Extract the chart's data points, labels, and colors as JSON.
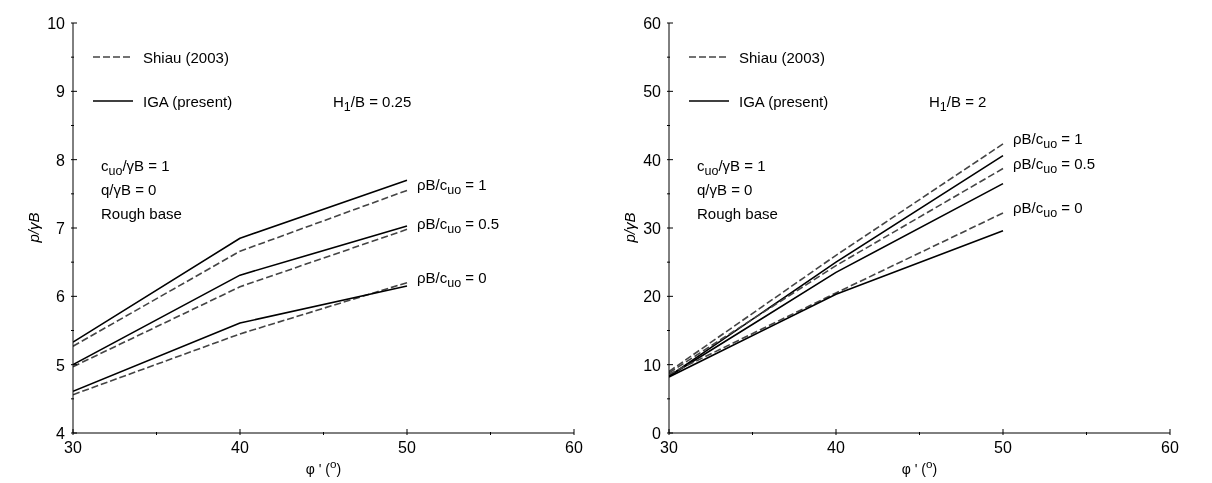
{
  "chart_data": [
    {
      "type": "line",
      "xlabel": "φ ' ($^{o}$)",
      "ylabel": "p/γB",
      "x": [
        30,
        40,
        50
      ],
      "xlim": [
        30,
        60
      ],
      "xticks": [
        30,
        {
          "value": 35,
          "label": null
        },
        40,
        {
          "value": 45,
          "label": null
        },
        50,
        {
          "value": 55,
          "label": null
        },
        60
      ],
      "ylim": [
        4,
        10
      ],
      "yticks": [
        4,
        {
          "value": 4.5,
          "label": null
        },
        5,
        {
          "value": 5.5,
          "label": null
        },
        6,
        {
          "value": 6.5,
          "label": null
        },
        7,
        {
          "value": 7.5,
          "label": null
        },
        8,
        {
          "value": 8.5,
          "label": null
        },
        9,
        {
          "value": 9.5,
          "label": null
        },
        10
      ],
      "legend": "top left",
      "grid": false,
      "marker": "none",
      "series": [
        {
          "name": "Shiau (2003)",
          "color": "#444444",
          "line_style": "dashed",
          "values": [
            5.27,
            6.66,
            7.55
          ]
        },
        {
          "name": "IGA (present)",
          "color": "#000000",
          "line_style": "solid",
          "values": [
            5.33,
            6.85,
            7.7
          ]
        },
        {
          "color": "#444444",
          "line_style": "dashed",
          "values": [
            4.97,
            6.14,
            6.98
          ]
        },
        {
          "color": "#000000",
          "line_style": "solid",
          "values": [
            5.0,
            6.31,
            7.03
          ]
        },
        {
          "color": "#444444",
          "line_style": "dashed",
          "values": [
            4.56,
            5.45,
            6.2
          ]
        },
        {
          "color": "#000000",
          "line_style": "solid",
          "values": [
            4.61,
            5.61,
            6.15
          ]
        }
      ],
      "annotations": [
        "H$_{1}$/B = 0.25",
        "c$_{uo}$/γB = 1",
        "q/γB = 0",
        "Rough base",
        "ρB/c$_{uo}$ = 1",
        "ρB/c$_{uo}$ = 0.5",
        "ρB/c$_{uo}$ = 0"
      ]
    },
    {
      "type": "line",
      "xlabel": "φ ' ($^{o}$)",
      "ylabel": "p/γB",
      "x": [
        30,
        40,
        50
      ],
      "xlim": [
        30,
        60
      ],
      "xticks": [
        30,
        {
          "value": 35,
          "label": null
        },
        40,
        {
          "value": 45,
          "label": null
        },
        50,
        {
          "value": 55,
          "label": null
        },
        60
      ],
      "ylim": [
        0,
        60
      ],
      "yticks": [
        0,
        {
          "value": 5,
          "label": null
        },
        10,
        {
          "value": 15,
          "label": null
        },
        20,
        {
          "value": 25,
          "label": null
        },
        30,
        {
          "value": 35,
          "label": null
        },
        40,
        {
          "value": 45,
          "label": null
        },
        50,
        {
          "value": 55,
          "label": null
        },
        60
      ],
      "legend": "top left",
      "grid": false,
      "marker": "none",
      "series": [
        {
          "name": "Shiau (2003)",
          "color": "#444444",
          "line_style": "dashed",
          "values": [
            9,
            26,
            42.3
          ]
        },
        {
          "name": "IGA (present)",
          "color": "#000000",
          "line_style": "solid",
          "values": [
            8.3,
            25,
            40.6
          ]
        },
        {
          "color": "#444444",
          "line_style": "dashed",
          "values": [
            8.8,
            24.5,
            38.7
          ]
        },
        {
          "color": "#000000",
          "line_style": "solid",
          "values": [
            8.3,
            23.5,
            36.5
          ]
        },
        {
          "color": "#444444",
          "line_style": "dashed",
          "values": [
            8.6,
            20.5,
            32.2
          ]
        },
        {
          "color": "#000000",
          "line_style": "solid",
          "values": [
            8.2,
            20.3,
            29.6
          ]
        }
      ],
      "annotations": [
        "H$_{1}$/B = 2",
        "c$_{uo}$/γB = 1",
        "q/γB = 0",
        "Rough base",
        "ρB/c$_{uo}$ = 1",
        "ρB/c$_{uo}$ = 0.5",
        "ρB/c$_{uo}$ = 0"
      ]
    }
  ]
}
